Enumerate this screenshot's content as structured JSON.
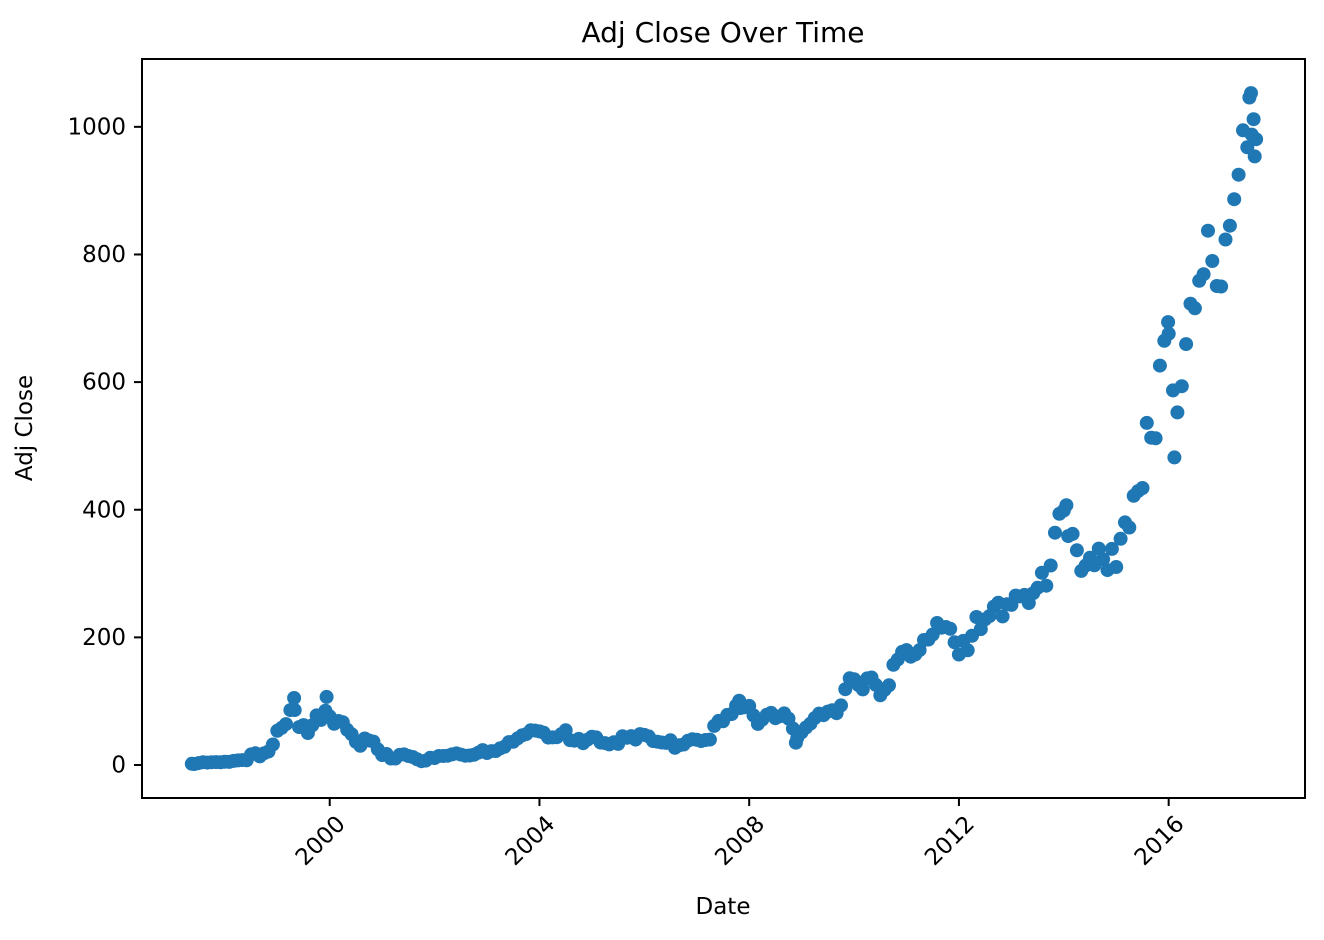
{
  "page": {
    "background_color": "#ffffff",
    "kind": "matplotlib-figure"
  },
  "chart_data": {
    "type": "scatter",
    "title": "Adj Close Over Time",
    "xlabel": "Date",
    "ylabel": "Adj Close",
    "series_name": "Adj Close",
    "marker_color": "#1f77b4",
    "axis_color": "#000000",
    "background": "#ffffff",
    "grid": false,
    "legend": false,
    "x_unit": "decimal_year",
    "x_tick_rotation": 45,
    "xlim": [
      1996.42,
      2018.6
    ],
    "ylim": [
      -51.7,
      1106.3
    ],
    "x_ticks": [
      2000,
      2004,
      2008,
      2012,
      2016
    ],
    "y_ticks": [
      0,
      200,
      400,
      600,
      800,
      1000
    ],
    "points": [
      [
        1997.37,
        1.96
      ],
      [
        1997.417,
        1.55
      ],
      [
        1997.5,
        3.03
      ],
      [
        1997.583,
        4.33
      ],
      [
        1997.667,
        3.81
      ],
      [
        1997.75,
        4.33
      ],
      [
        1997.833,
        4.6
      ],
      [
        1997.917,
        4.19
      ],
      [
        1998.0,
        5.02
      ],
      [
        1998.083,
        4.92
      ],
      [
        1998.167,
        6.43
      ],
      [
        1998.25,
        7.15
      ],
      [
        1998.333,
        7.69
      ],
      [
        1998.417,
        7.42
      ],
      [
        1998.5,
        16.63
      ],
      [
        1998.583,
        18.55
      ],
      [
        1998.667,
        13.46
      ],
      [
        1998.75,
        18.51
      ],
      [
        1998.833,
        21.09
      ],
      [
        1998.917,
        32.13
      ],
      [
        1999.0,
        53.54
      ],
      [
        1999.083,
        58.13
      ],
      [
        1999.167,
        64.17
      ],
      [
        1999.25,
        86.1
      ],
      [
        1999.32,
        105.06
      ],
      [
        1999.333,
        86.03
      ],
      [
        1999.417,
        59.38
      ],
      [
        1999.5,
        62.53
      ],
      [
        1999.583,
        50.22
      ],
      [
        1999.667,
        62.22
      ],
      [
        1999.75,
        77.75
      ],
      [
        1999.833,
        70.63
      ],
      [
        1999.917,
        85.06
      ],
      [
        1999.94,
        106.69
      ],
      [
        2000.0,
        76.13
      ],
      [
        2000.083,
        64.56
      ],
      [
        2000.167,
        68.88
      ],
      [
        2000.25,
        67.0
      ],
      [
        2000.333,
        55.19
      ],
      [
        2000.417,
        48.31
      ],
      [
        2000.5,
        36.31
      ],
      [
        2000.583,
        30.13
      ],
      [
        2000.667,
        41.5
      ],
      [
        2000.75,
        38.44
      ],
      [
        2000.833,
        36.63
      ],
      [
        2000.917,
        24.69
      ],
      [
        2001.0,
        15.56
      ],
      [
        2001.083,
        17.31
      ],
      [
        2001.167,
        10.19
      ],
      [
        2001.25,
        10.23
      ],
      [
        2001.333,
        15.78
      ],
      [
        2001.417,
        16.69
      ],
      [
        2001.5,
        14.15
      ],
      [
        2001.583,
        12.49
      ],
      [
        2001.667,
        8.94
      ],
      [
        2001.75,
        5.97
      ],
      [
        2001.833,
        6.98
      ],
      [
        2001.917,
        11.32
      ],
      [
        2002.0,
        10.82
      ],
      [
        2002.083,
        14.19
      ],
      [
        2002.167,
        14.1
      ],
      [
        2002.25,
        14.54
      ],
      [
        2002.333,
        16.69
      ],
      [
        2002.417,
        18.23
      ],
      [
        2002.5,
        16.25
      ],
      [
        2002.583,
        14.61
      ],
      [
        2002.667,
        14.94
      ],
      [
        2002.75,
        15.93
      ],
      [
        2002.833,
        19.36
      ],
      [
        2002.917,
        23.35
      ],
      [
        2003.0,
        18.89
      ],
      [
        2003.083,
        21.85
      ],
      [
        2003.167,
        22.01
      ],
      [
        2003.25,
        26.03
      ],
      [
        2003.333,
        28.69
      ],
      [
        2003.417,
        35.89
      ],
      [
        2003.5,
        36.32
      ],
      [
        2003.583,
        41.64
      ],
      [
        2003.667,
        46.32
      ],
      [
        2003.75,
        48.43
      ],
      [
        2003.833,
        54.43
      ],
      [
        2003.917,
        53.97
      ],
      [
        2004.0,
        52.62
      ],
      [
        2004.083,
        50.4
      ],
      [
        2004.167,
        43.01
      ],
      [
        2004.25,
        43.28
      ],
      [
        2004.333,
        43.6
      ],
      [
        2004.417,
        48.5
      ],
      [
        2004.5,
        54.4
      ],
      [
        2004.583,
        38.92
      ],
      [
        2004.667,
        38.14
      ],
      [
        2004.75,
        40.86
      ],
      [
        2004.833,
        34.13
      ],
      [
        2004.917,
        39.68
      ],
      [
        2005.0,
        44.29
      ],
      [
        2005.083,
        43.22
      ],
      [
        2005.167,
        35.18
      ],
      [
        2005.25,
        34.27
      ],
      [
        2005.333,
        32.36
      ],
      [
        2005.417,
        35.51
      ],
      [
        2005.5,
        33.09
      ],
      [
        2005.583,
        45.15
      ],
      [
        2005.667,
        42.7
      ],
      [
        2005.75,
        45.3
      ],
      [
        2005.833,
        39.86
      ],
      [
        2005.917,
        48.46
      ],
      [
        2006.0,
        47.15
      ],
      [
        2006.083,
        44.82
      ],
      [
        2006.167,
        37.44
      ],
      [
        2006.25,
        36.53
      ],
      [
        2006.333,
        35.21
      ],
      [
        2006.417,
        34.61
      ],
      [
        2006.5,
        38.68
      ],
      [
        2006.583,
        26.89
      ],
      [
        2006.667,
        30.83
      ],
      [
        2006.75,
        32.12
      ],
      [
        2006.833,
        38.09
      ],
      [
        2006.917,
        40.34
      ],
      [
        2007.0,
        39.46
      ],
      [
        2007.083,
        37.67
      ],
      [
        2007.167,
        39.14
      ],
      [
        2007.25,
        39.79
      ],
      [
        2007.333,
        61.33
      ],
      [
        2007.417,
        69.14
      ],
      [
        2007.5,
        68.41
      ],
      [
        2007.583,
        78.54
      ],
      [
        2007.667,
        79.91
      ],
      [
        2007.75,
        93.15
      ],
      [
        2007.81,
        100.82
      ],
      [
        2007.833,
        89.15
      ],
      [
        2007.917,
        90.56
      ],
      [
        2008.0,
        92.64
      ],
      [
        2008.083,
        77.7
      ],
      [
        2008.167,
        64.47
      ],
      [
        2008.25,
        71.3
      ],
      [
        2008.333,
        78.63
      ],
      [
        2008.417,
        81.62
      ],
      [
        2008.5,
        73.33
      ],
      [
        2008.583,
        76.34
      ],
      [
        2008.667,
        80.81
      ],
      [
        2008.75,
        72.76
      ],
      [
        2008.833,
        57.24
      ],
      [
        2008.89,
        35.03
      ],
      [
        2008.917,
        42.7
      ],
      [
        2009.0,
        51.28
      ],
      [
        2009.083,
        58.82
      ],
      [
        2009.167,
        64.79
      ],
      [
        2009.25,
        73.44
      ],
      [
        2009.333,
        80.52
      ],
      [
        2009.417,
        77.99
      ],
      [
        2009.5,
        83.66
      ],
      [
        2009.583,
        85.76
      ],
      [
        2009.667,
        81.19
      ],
      [
        2009.75,
        93.36
      ],
      [
        2009.833,
        118.81
      ],
      [
        2009.917,
        135.91
      ],
      [
        2010.0,
        134.52
      ],
      [
        2010.083,
        125.41
      ],
      [
        2010.167,
        118.4
      ],
      [
        2010.25,
        135.77
      ],
      [
        2010.333,
        137.1
      ],
      [
        2010.417,
        125.46
      ],
      [
        2010.5,
        109.26
      ],
      [
        2010.583,
        117.89
      ],
      [
        2010.667,
        124.83
      ],
      [
        2010.75,
        157.06
      ],
      [
        2010.833,
        165.23
      ],
      [
        2010.917,
        177.2
      ],
      [
        2011.0,
        180.0
      ],
      [
        2011.083,
        169.64
      ],
      [
        2011.167,
        173.29
      ],
      [
        2011.25,
        180.13
      ],
      [
        2011.333,
        195.81
      ],
      [
        2011.417,
        196.69
      ],
      [
        2011.5,
        204.49
      ],
      [
        2011.583,
        222.52
      ],
      [
        2011.667,
        215.23
      ],
      [
        2011.75,
        216.18
      ],
      [
        2011.833,
        213.51
      ],
      [
        2011.917,
        192.29
      ],
      [
        2012.0,
        173.1
      ],
      [
        2012.083,
        194.44
      ],
      [
        2012.167,
        179.69
      ],
      [
        2012.25,
        202.51
      ],
      [
        2012.333,
        231.9
      ],
      [
        2012.417,
        212.91
      ],
      [
        2012.5,
        228.35
      ],
      [
        2012.583,
        233.3
      ],
      [
        2012.667,
        248.27
      ],
      [
        2012.75,
        254.32
      ],
      [
        2012.833,
        232.89
      ],
      [
        2012.917,
        252.05
      ],
      [
        2013.0,
        250.87
      ],
      [
        2013.083,
        265.5
      ],
      [
        2013.167,
        264.27
      ],
      [
        2013.25,
        266.49
      ],
      [
        2013.333,
        253.81
      ],
      [
        2013.417,
        269.2
      ],
      [
        2013.5,
        277.69
      ],
      [
        2013.583,
        301.22
      ],
      [
        2013.667,
        280.98
      ],
      [
        2013.75,
        312.64
      ],
      [
        2013.833,
        364.03
      ],
      [
        2013.917,
        393.62
      ],
      [
        2014.0,
        398.79
      ],
      [
        2014.05,
        407.05
      ],
      [
        2014.083,
        358.69
      ],
      [
        2014.167,
        362.1
      ],
      [
        2014.25,
        336.37
      ],
      [
        2014.333,
        304.13
      ],
      [
        2014.417,
        312.55
      ],
      [
        2014.5,
        324.78
      ],
      [
        2014.583,
        312.99
      ],
      [
        2014.667,
        339.04
      ],
      [
        2014.75,
        322.44
      ],
      [
        2014.833,
        305.46
      ],
      [
        2014.917,
        338.64
      ],
      [
        2015.0,
        310.35
      ],
      [
        2015.083,
        354.53
      ],
      [
        2015.167,
        380.16
      ],
      [
        2015.25,
        372.1
      ],
      [
        2015.333,
        421.78
      ],
      [
        2015.417,
        429.23
      ],
      [
        2015.5,
        434.09
      ],
      [
        2015.583,
        536.15
      ],
      [
        2015.667,
        512.89
      ],
      [
        2015.75,
        511.89
      ],
      [
        2015.833,
        625.9
      ],
      [
        2015.917,
        664.8
      ],
      [
        2015.99,
        693.97
      ],
      [
        2016.0,
        675.89
      ],
      [
        2016.083,
        587.0
      ],
      [
        2016.11,
        482.07
      ],
      [
        2016.167,
        552.52
      ],
      [
        2016.25,
        593.64
      ],
      [
        2016.333,
        659.59
      ],
      [
        2016.417,
        722.79
      ],
      [
        2016.5,
        715.62
      ],
      [
        2016.583,
        758.81
      ],
      [
        2016.667,
        769.16
      ],
      [
        2016.75,
        837.31
      ],
      [
        2016.833,
        789.82
      ],
      [
        2016.917,
        750.57
      ],
      [
        2017.0,
        749.87
      ],
      [
        2017.083,
        823.48
      ],
      [
        2017.167,
        845.04
      ],
      [
        2017.25,
        886.54
      ],
      [
        2017.333,
        924.99
      ],
      [
        2017.417,
        994.62
      ],
      [
        2017.5,
        968.0
      ],
      [
        2017.54,
        1046.0
      ],
      [
        2017.57,
        1052.8
      ],
      [
        2017.583,
        987.78
      ],
      [
        2017.62,
        1012.0
      ],
      [
        2017.64,
        953.7
      ],
      [
        2017.667,
        980.6
      ]
    ]
  }
}
